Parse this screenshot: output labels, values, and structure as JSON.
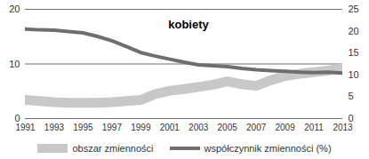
{
  "chart_data": {
    "type": "line",
    "title": "kobiety",
    "x": [
      1991,
      1992,
      1993,
      1994,
      1995,
      1996,
      1997,
      1998,
      1999,
      2000,
      2001,
      2002,
      2003,
      2004,
      2005,
      2006,
      2007,
      2008,
      2009,
      2010,
      2011,
      2012,
      2013
    ],
    "xlim": [
      1991,
      2013
    ],
    "xticks": [
      1991,
      1993,
      1995,
      1997,
      1999,
      2001,
      2003,
      2005,
      2007,
      2009,
      2011,
      2013
    ],
    "ylim": [
      0,
      20
    ],
    "yticks": [
      0,
      10,
      20
    ],
    "y2lim": [
      0,
      25
    ],
    "y2ticks": [
      0,
      5,
      10,
      15,
      20,
      25
    ],
    "grid": true,
    "legend": "bottom",
    "series": [
      {
        "name": "obszar zmienności",
        "color": "#c8c8c8",
        "values": [
          3.4,
          3.2,
          3.0,
          2.9,
          2.9,
          2.9,
          3.0,
          3.2,
          3.4,
          4.5,
          5.1,
          5.4,
          5.8,
          6.2,
          6.8,
          6.3,
          6.0,
          7.0,
          7.8,
          8.2,
          8.5,
          8.8,
          9.2
        ]
      },
      {
        "name": "współczynnik zmienności (%)",
        "color": "#6e6e6e",
        "axis": "y2",
        "values": [
          20.5,
          20.3,
          20.2,
          19.9,
          19.6,
          18.8,
          17.8,
          16.5,
          15.1,
          14.3,
          13.6,
          12.9,
          12.3,
          12.1,
          11.9,
          11.5,
          11.2,
          11.0,
          10.8,
          10.6,
          10.5,
          10.6,
          10.4
        ]
      }
    ]
  }
}
